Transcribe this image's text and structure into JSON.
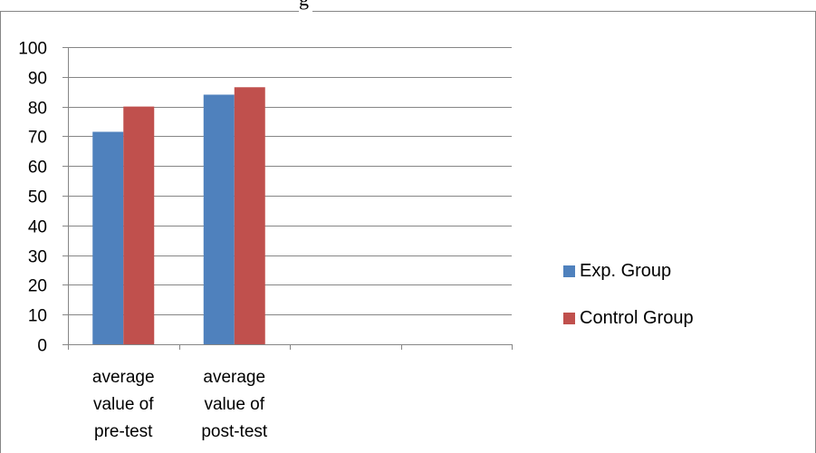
{
  "chart_data": {
    "type": "bar",
    "title_fragment": "g",
    "categories": [
      "average value of pre-test",
      "average value of post-test",
      "",
      ""
    ],
    "category_lines": [
      [
        "average",
        "value of",
        "pre-test"
      ],
      [
        "average",
        "value of",
        "post-test"
      ],
      [],
      []
    ],
    "series": [
      {
        "name": "Exp. Group",
        "values": [
          71.5,
          84,
          null,
          null
        ],
        "color": "#4F81BD"
      },
      {
        "name": "Control Group",
        "values": [
          80,
          86.5,
          null,
          null
        ],
        "color": "#C0504D"
      }
    ],
    "ylim": [
      0,
      100
    ],
    "yticks": [
      0,
      10,
      20,
      30,
      40,
      50,
      60,
      70,
      80,
      90,
      100
    ],
    "grid": true,
    "legend_position": "right",
    "gridline_color": "#868686",
    "axis_color": "#868686",
    "frame_color": "#868686"
  }
}
